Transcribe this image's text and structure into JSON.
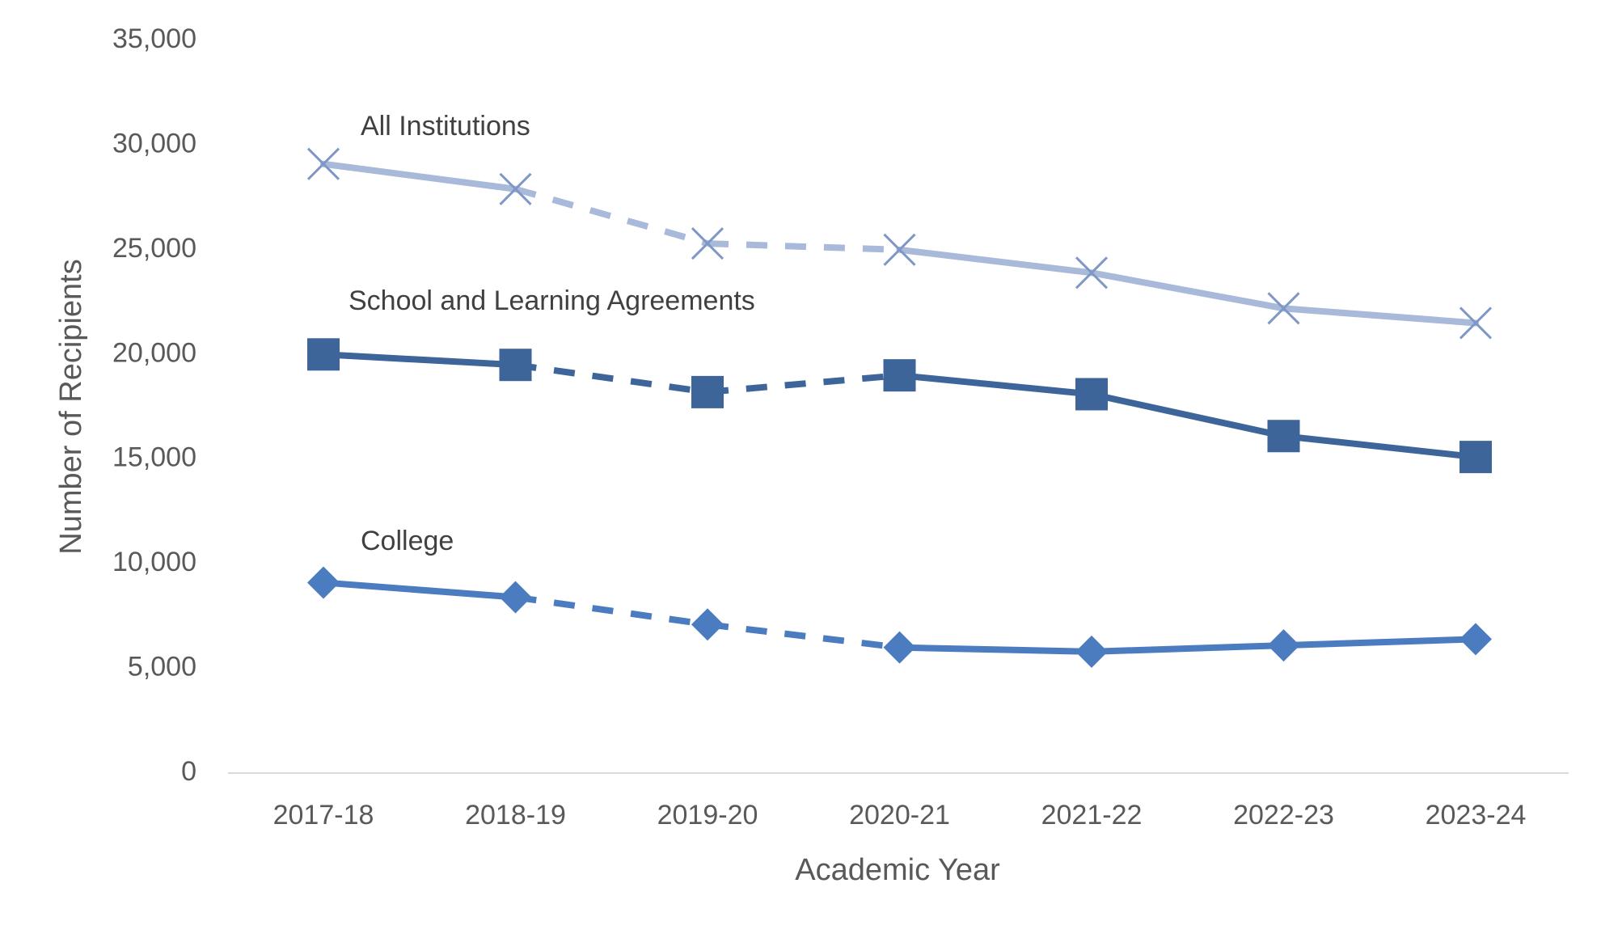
{
  "chart_data": {
    "type": "line",
    "title": "",
    "xlabel": "Academic Year",
    "ylabel": "Number of Recipients",
    "categories": [
      "2017-18",
      "2018-19",
      "2019-20",
      "2020-21",
      "2021-22",
      "2022-23",
      "2023-24"
    ],
    "y_ticks": [
      "0",
      "5,000",
      "10,000",
      "15,000",
      "20,000",
      "25,000",
      "30,000",
      "35,000"
    ],
    "ylim": [
      0,
      35000
    ],
    "grid": false,
    "legend": "none (series labeled directly on chart)",
    "dashed_segments_note": "segments 2018-19 to 2020-21 drawn dashed",
    "series": [
      {
        "name": "All Institutions",
        "values": [
          29100,
          27900,
          25300,
          25000,
          23900,
          22200,
          21500
        ],
        "color": "#a9b9d9",
        "marker": "x-icon"
      },
      {
        "name": "School and Learning Agreements",
        "values": [
          20000,
          19500,
          18200,
          19000,
          18100,
          16100,
          15100
        ],
        "color": "#3d6599",
        "marker": "square-icon"
      },
      {
        "name": "College",
        "values": [
          9100,
          8400,
          7100,
          6000,
          5800,
          6100,
          6400
        ],
        "color": "#4b7cbf",
        "marker": "diamond-icon"
      }
    ]
  }
}
